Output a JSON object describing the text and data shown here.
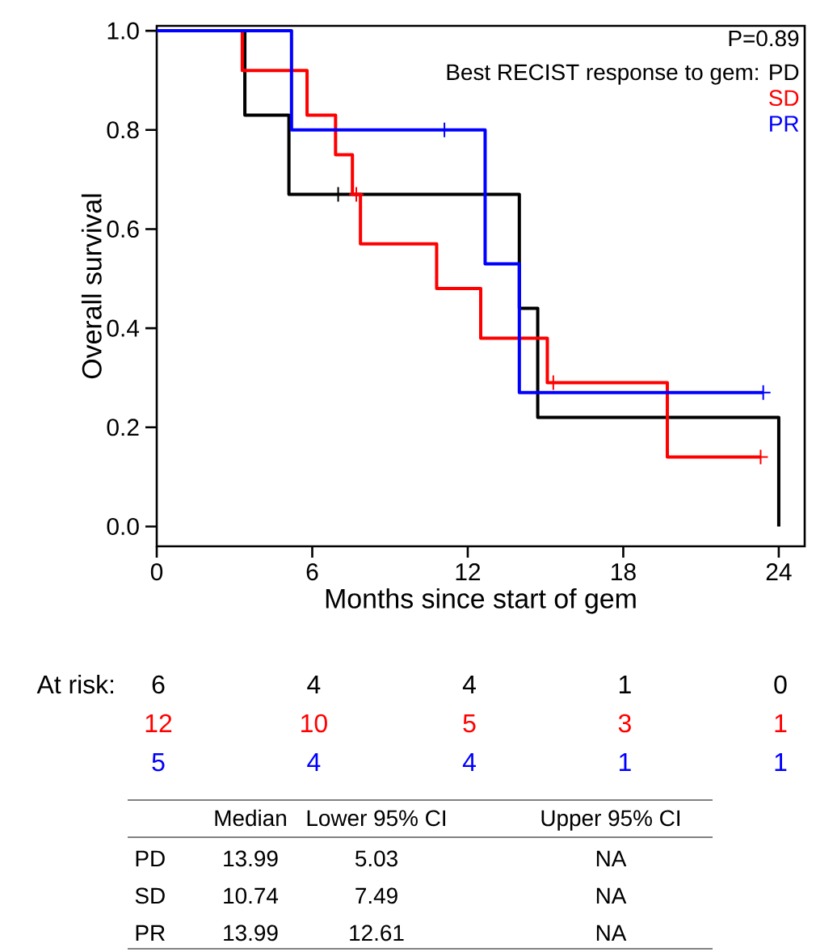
{
  "chart_data": {
    "type": "step",
    "xlabel": "Months since start of gem",
    "ylabel": "Overall survival",
    "legend_title": "Best RECIST response to gem:",
    "legend": "top right",
    "xlim": [
      0,
      25
    ],
    "ylim": [
      -0.04,
      1.01
    ],
    "xticks": [
      0,
      6,
      12,
      18,
      24
    ],
    "yticks": [
      {
        "value": 0,
        "label": "0.0"
      },
      {
        "value": 0.2,
        "label": "0.2"
      },
      {
        "value": 0.4,
        "label": "0.4"
      },
      {
        "value": 0.6,
        "label": "0.6"
      },
      {
        "value": 0.8,
        "label": "0.8"
      },
      {
        "value": 1,
        "label": "1.0"
      }
    ],
    "series": [
      {
        "name": "PD",
        "color": "#000000",
        "x": [
          0,
          3.4,
          5.1,
          13.99,
          14.7,
          24
        ],
        "values": [
          1,
          0.83,
          0.67,
          0.44,
          0.22,
          0
        ]
      },
      {
        "name": "SD",
        "color": "#ff0000",
        "x": [
          0,
          3.3,
          5.8,
          6.9,
          7.55,
          7.86,
          10.8,
          12.5,
          15.07,
          19.7,
          23.3
        ],
        "values": [
          1,
          0.92,
          0.83,
          0.75,
          0.67,
          0.57,
          0.48,
          0.38,
          0.29,
          0.14,
          0.14
        ]
      },
      {
        "name": "PR",
        "color": "#0000ff",
        "x": [
          0,
          5.2,
          12.67,
          13.99,
          23.4
        ],
        "values": [
          1,
          0.8,
          0.53,
          0.27,
          0.27
        ]
      },
      {
        "color": "#000000",
        "type": "scatter",
        "marker": "cross",
        "x": [
          7.0
        ],
        "values": [
          0.67
        ]
      },
      {
        "color": "#ff0000",
        "type": "scatter",
        "marker": "cross",
        "x": [
          7.7,
          15.3,
          23.3
        ],
        "values": [
          0.67,
          0.29,
          0.14
        ]
      },
      {
        "color": "#0000ff",
        "type": "scatter",
        "marker": "cross",
        "x": [
          11.1,
          23.4
        ],
        "values": [
          0.8,
          0.27
        ]
      }
    ],
    "annotations": [
      "P=0.89",
      "At risk:",
      "6",
      "4",
      "4",
      "1",
      "0",
      "12",
      "10",
      "5",
      "3",
      "1",
      "5",
      "4",
      "4",
      "1",
      "1",
      "Median",
      "Lower 95% CI",
      "Upper 95% CI",
      "PD",
      "13.99",
      "5.03",
      "NA",
      "SD",
      "10.74",
      "7.49",
      "NA",
      "PR",
      "13.99",
      "12.61",
      "NA"
    ]
  }
}
